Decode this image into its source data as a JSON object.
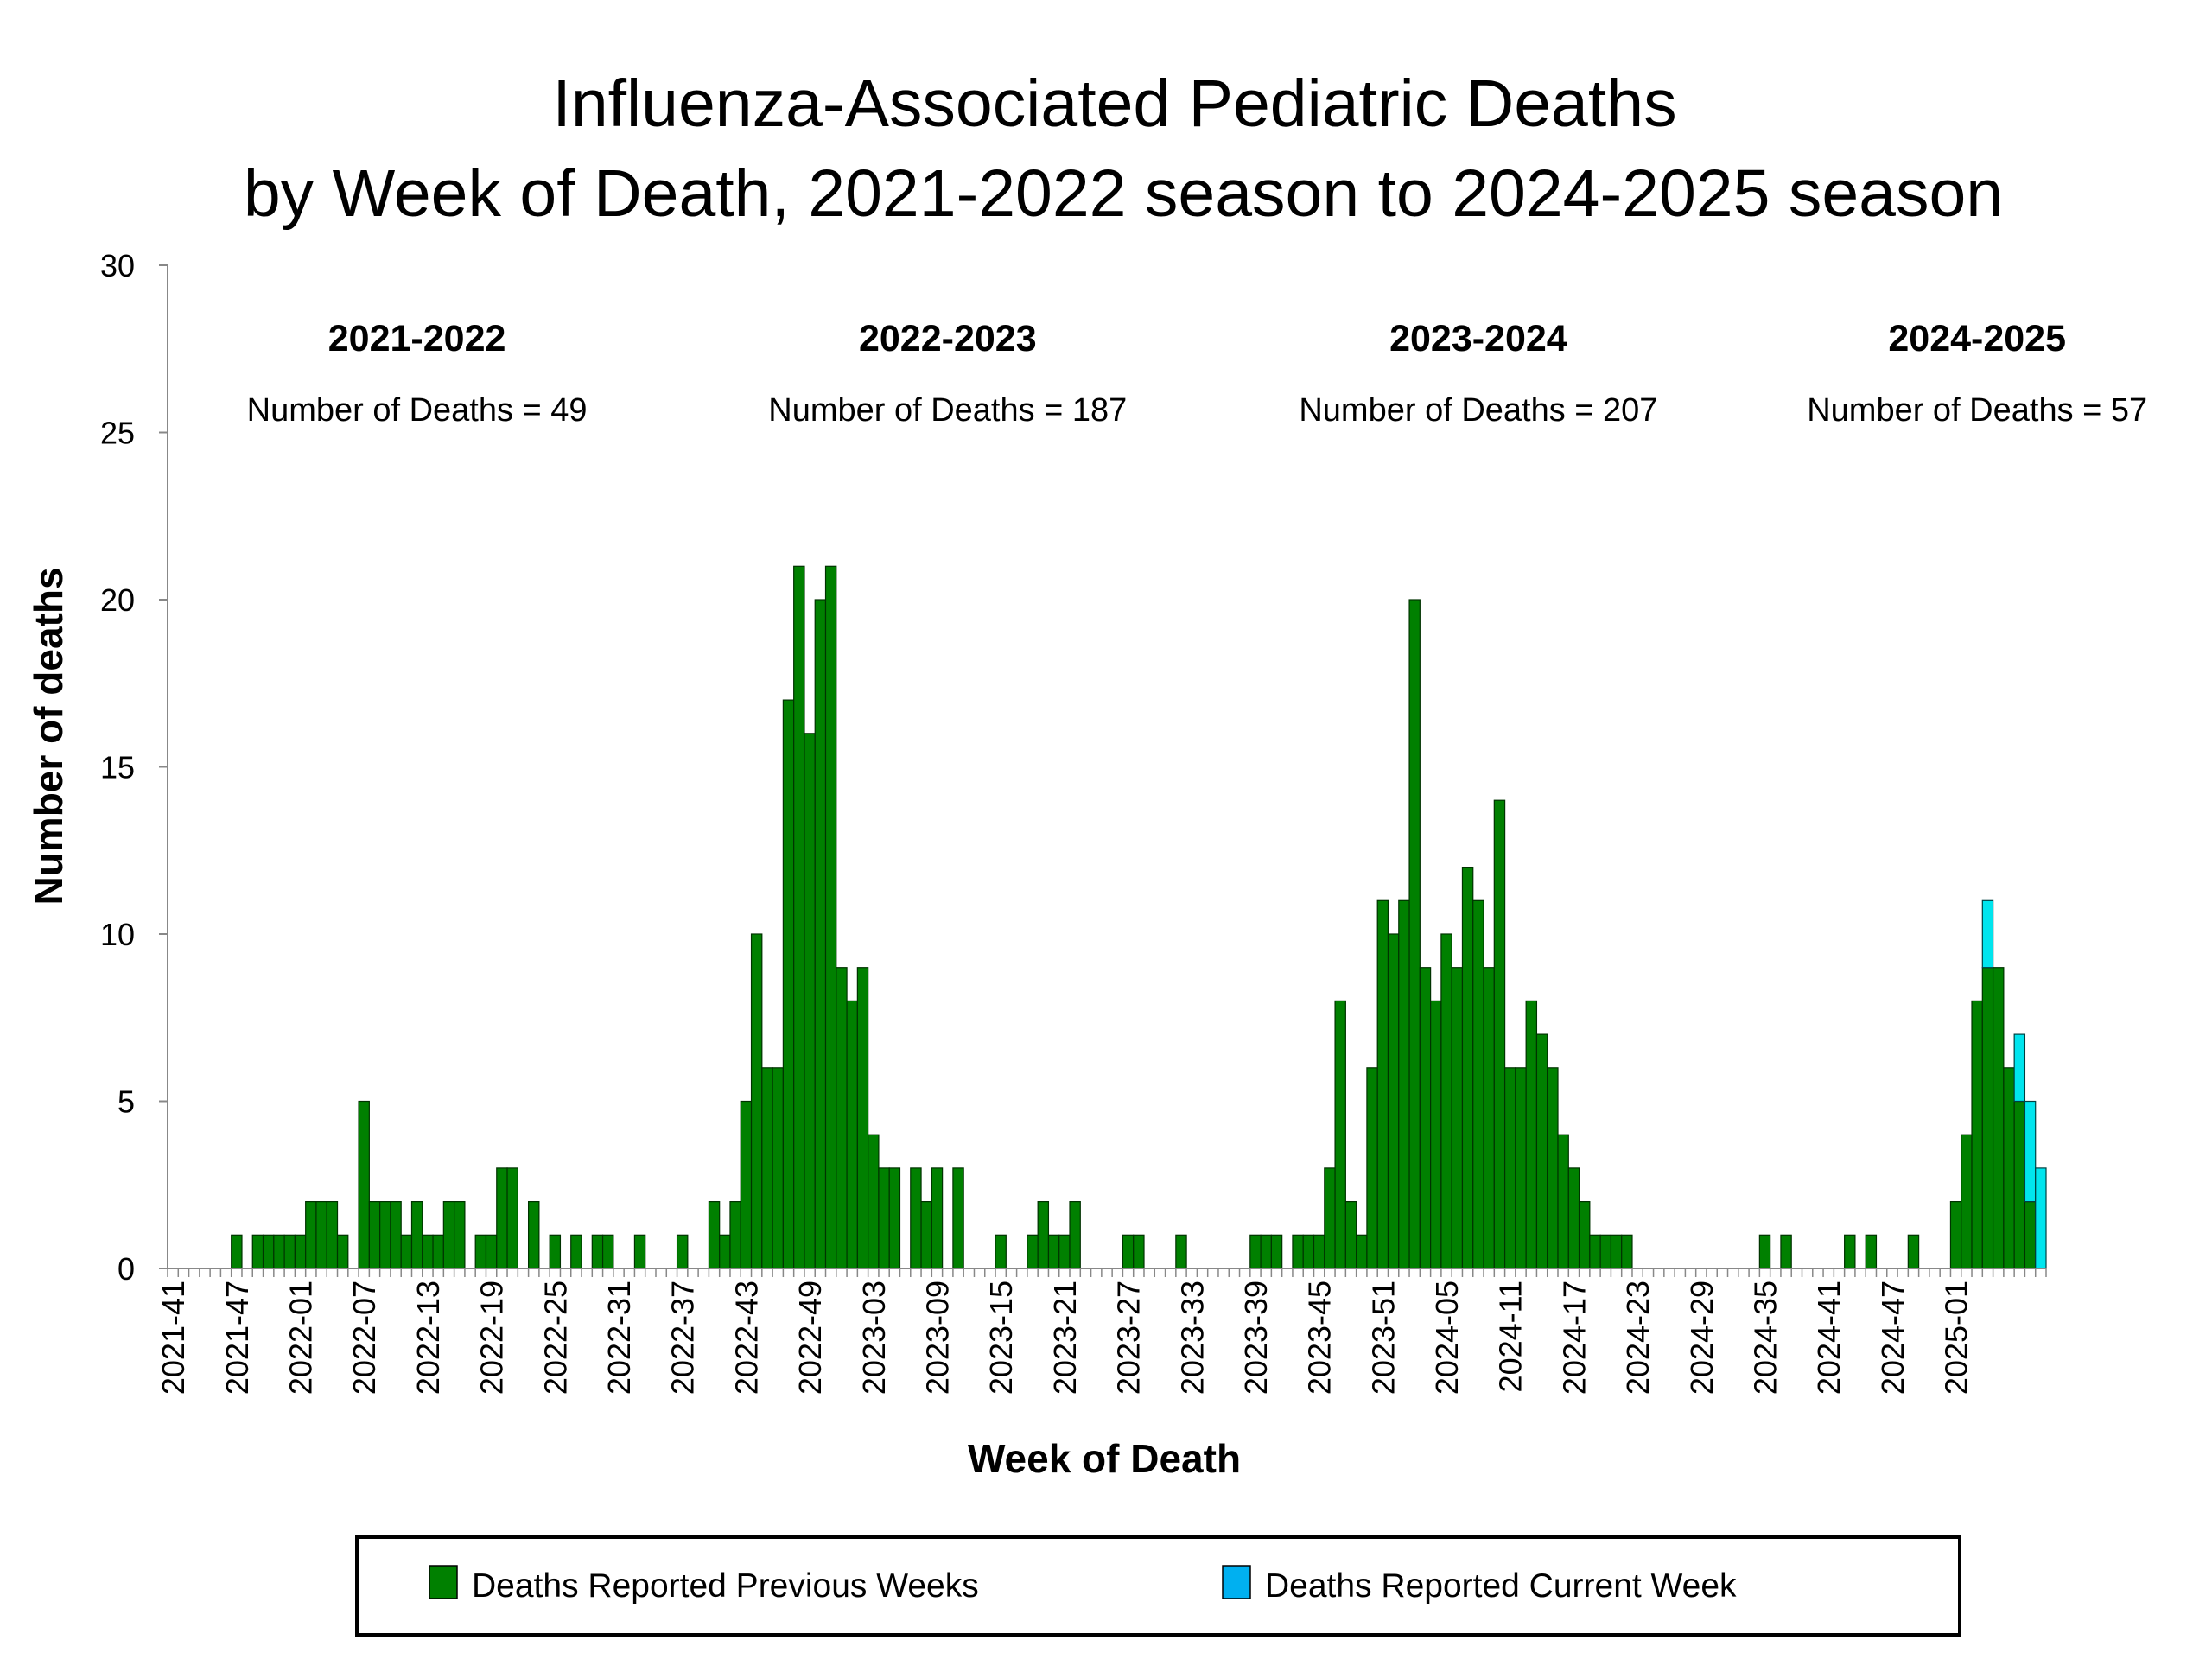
{
  "title_line1": "Influenza-Associated Pediatric Deaths",
  "title_line2": "by Week of Death, 2021-2022 season to 2024-2025 season",
  "colors": {
    "previous": "#008000",
    "current": "#00E5EE",
    "current_legend": "#00B0F0",
    "axis": "#888888"
  },
  "chart_data": {
    "type": "bar",
    "stacked": true,
    "xlabel": "Week of Death",
    "ylabel": "Number of deaths",
    "ylim": [
      0,
      30
    ],
    "yticks": [
      "0",
      "5",
      "10",
      "15",
      "20",
      "25",
      "30"
    ],
    "x_start": {
      "year": 2021,
      "week": 41
    },
    "x_tick_labels": [
      "2021-41",
      "2021-47",
      "2022-01",
      "2022-07",
      "2022-13",
      "2022-19",
      "2022-25",
      "2022-31",
      "2022-37",
      "2022-43",
      "2022-49",
      "2023-03",
      "2023-09",
      "2023-15",
      "2023-21",
      "2023-27",
      "2023-33",
      "2023-39",
      "2023-45",
      "2023-51",
      "2024-05",
      "2024-11",
      "2024-17",
      "2024-23",
      "2024-29",
      "2024-35",
      "2024-41",
      "2024-47",
      "2025-01"
    ],
    "series": [
      {
        "name": "Deaths Reported Previous Weeks",
        "values": [
          0,
          0,
          0,
          0,
          0,
          0,
          1,
          0,
          1,
          1,
          1,
          1,
          1,
          2,
          2,
          2,
          1,
          0,
          5,
          2,
          2,
          2,
          1,
          2,
          1,
          1,
          2,
          2,
          0,
          1,
          1,
          3,
          3,
          0,
          2,
          0,
          1,
          0,
          1,
          0,
          1,
          1,
          0,
          0,
          1,
          0,
          0,
          0,
          1,
          0,
          0,
          2,
          1,
          2,
          5,
          10,
          6,
          6,
          17,
          21,
          16,
          20,
          21,
          9,
          8,
          9,
          4,
          3,
          3,
          0,
          3,
          2,
          3,
          0,
          3,
          0,
          0,
          0,
          1,
          0,
          0,
          1,
          2,
          1,
          1,
          2,
          0,
          0,
          0,
          0,
          1,
          1,
          0,
          0,
          0,
          1,
          0,
          0,
          0,
          0,
          0,
          0,
          1,
          1,
          1,
          0,
          1,
          1,
          1,
          3,
          8,
          2,
          1,
          6,
          11,
          10,
          11,
          20,
          9,
          8,
          10,
          9,
          12,
          11,
          9,
          14,
          6,
          6,
          8,
          7,
          6,
          4,
          3,
          2,
          1,
          1,
          1,
          1,
          0,
          0,
          0,
          0,
          0,
          0,
          0,
          0,
          0,
          0,
          0,
          0,
          1,
          0,
          1,
          0,
          0,
          0,
          0,
          0,
          1,
          0,
          1,
          0,
          0,
          0,
          1,
          0,
          0,
          0,
          2,
          4,
          8,
          9,
          9,
          6,
          5,
          2,
          0
        ]
      },
      {
        "name": "Deaths Reported Current Week",
        "values": [
          0,
          0,
          0,
          0,
          0,
          0,
          0,
          0,
          0,
          0,
          0,
          0,
          0,
          0,
          0,
          0,
          0,
          0,
          0,
          0,
          0,
          0,
          0,
          0,
          0,
          0,
          0,
          0,
          0,
          0,
          0,
          0,
          0,
          0,
          0,
          0,
          0,
          0,
          0,
          0,
          0,
          0,
          0,
          0,
          0,
          0,
          0,
          0,
          0,
          0,
          0,
          0,
          0,
          0,
          0,
          0,
          0,
          0,
          0,
          0,
          0,
          0,
          0,
          0,
          0,
          0,
          0,
          0,
          0,
          0,
          0,
          0,
          0,
          0,
          0,
          0,
          0,
          0,
          0,
          0,
          0,
          0,
          0,
          0,
          0,
          0,
          0,
          0,
          0,
          0,
          0,
          0,
          0,
          0,
          0,
          0,
          0,
          0,
          0,
          0,
          0,
          0,
          0,
          0,
          0,
          0,
          0,
          0,
          0,
          0,
          0,
          0,
          0,
          0,
          0,
          0,
          0,
          0,
          0,
          0,
          0,
          0,
          0,
          0,
          0,
          0,
          0,
          0,
          0,
          0,
          0,
          0,
          0,
          0,
          0,
          0,
          0,
          0,
          0,
          0,
          0,
          0,
          0,
          0,
          0,
          0,
          0,
          0,
          0,
          0,
          0,
          0,
          0,
          0,
          0,
          0,
          0,
          0,
          0,
          0,
          0,
          0,
          0,
          0,
          0,
          0,
          0,
          0,
          0,
          0,
          0,
          2,
          0,
          0,
          2,
          3,
          3
        ]
      }
    ],
    "seasons": [
      {
        "name": "2021-2022",
        "count_label": "Number of Deaths = 49",
        "center_index": 23
      },
      {
        "name": "2022-2023",
        "count_label": "Number of Deaths = 187",
        "center_index": 73
      },
      {
        "name": "2023-2024",
        "count_label": "Number of Deaths = 207",
        "center_index": 123
      },
      {
        "name": "2024-2025",
        "count_label": "Number of Deaths = 57",
        "center_index": 170
      }
    ],
    "legend": [
      {
        "label": "Deaths Reported Previous Weeks",
        "color_key": "previous"
      },
      {
        "label": "Deaths Reported Current Week",
        "color_key": "current_legend"
      }
    ],
    "legend_position": "bottom"
  }
}
